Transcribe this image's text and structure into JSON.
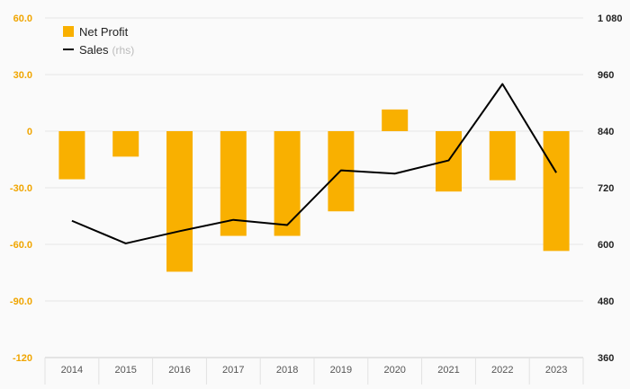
{
  "chart_data": {
    "type": "bar",
    "categories": [
      "2014",
      "2015",
      "2016",
      "2017",
      "2018",
      "2019",
      "2020",
      "2021",
      "2022",
      "2023"
    ],
    "series": [
      {
        "name": "Net Profit",
        "type": "bar",
        "axis": "left",
        "color": "#f9b000",
        "values": [
          -25.5,
          -13.5,
          -74.5,
          -55.5,
          -55.5,
          -42.5,
          11.5,
          -32.0,
          -26.0,
          -63.5
        ]
      },
      {
        "name": "Sales",
        "name_suffix": "(rhs)",
        "type": "line",
        "axis": "right",
        "color": "#000000",
        "values": [
          650,
          602,
          628,
          652,
          641,
          757,
          750,
          778,
          940,
          752
        ]
      }
    ],
    "y_left": {
      "ylim": [
        -120,
        60
      ],
      "ticks": [
        60,
        30,
        0,
        -30,
        -60,
        -90,
        -120
      ],
      "tick_labels": [
        "60.0",
        "30.0",
        "0",
        "-30.0",
        "-60.0",
        "-90.0",
        "-120"
      ],
      "color": "#f0a500"
    },
    "y_right": {
      "ylim": [
        360,
        1080
      ],
      "ticks": [
        1080,
        960,
        840,
        720,
        600,
        480,
        360
      ],
      "tick_labels": [
        "1 080",
        "960",
        "840",
        "720",
        "600",
        "480",
        "360"
      ]
    },
    "grid": true,
    "legend_position": "top-left"
  }
}
